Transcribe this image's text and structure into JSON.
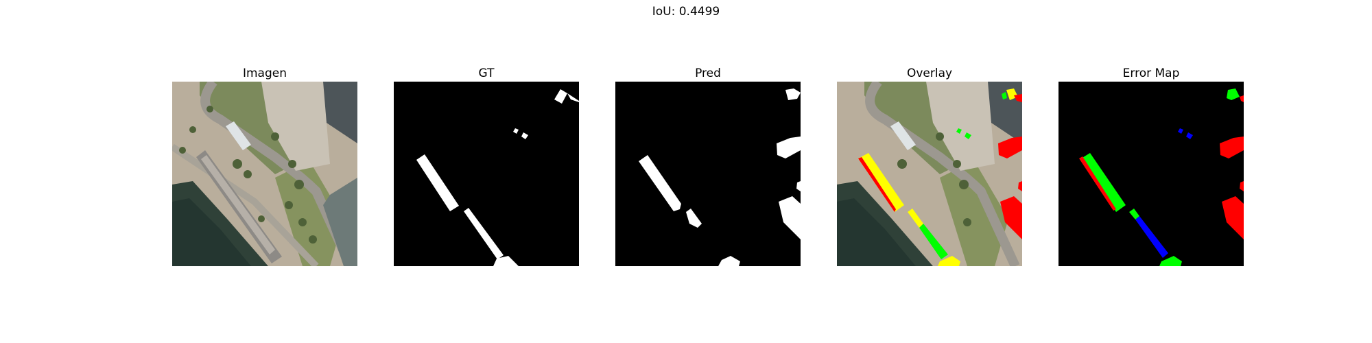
{
  "figure": {
    "suptitle": "IoU: 0.4499"
  },
  "panels": [
    {
      "id": "image",
      "title": "Imagen"
    },
    {
      "id": "gt",
      "title": "GT"
    },
    {
      "id": "pred",
      "title": "Pred"
    },
    {
      "id": "overlay",
      "title": "Overlay"
    },
    {
      "id": "error",
      "title": "Error Map"
    }
  ],
  "colors": {
    "background": "#ffffff",
    "mask_bg": "#000000",
    "mask_fg": "#ffffff",
    "true_positive": "#ffff00",
    "false_positive": "#ff0000",
    "false_negative": "#00ff00",
    "overlap": "#0000ff"
  }
}
